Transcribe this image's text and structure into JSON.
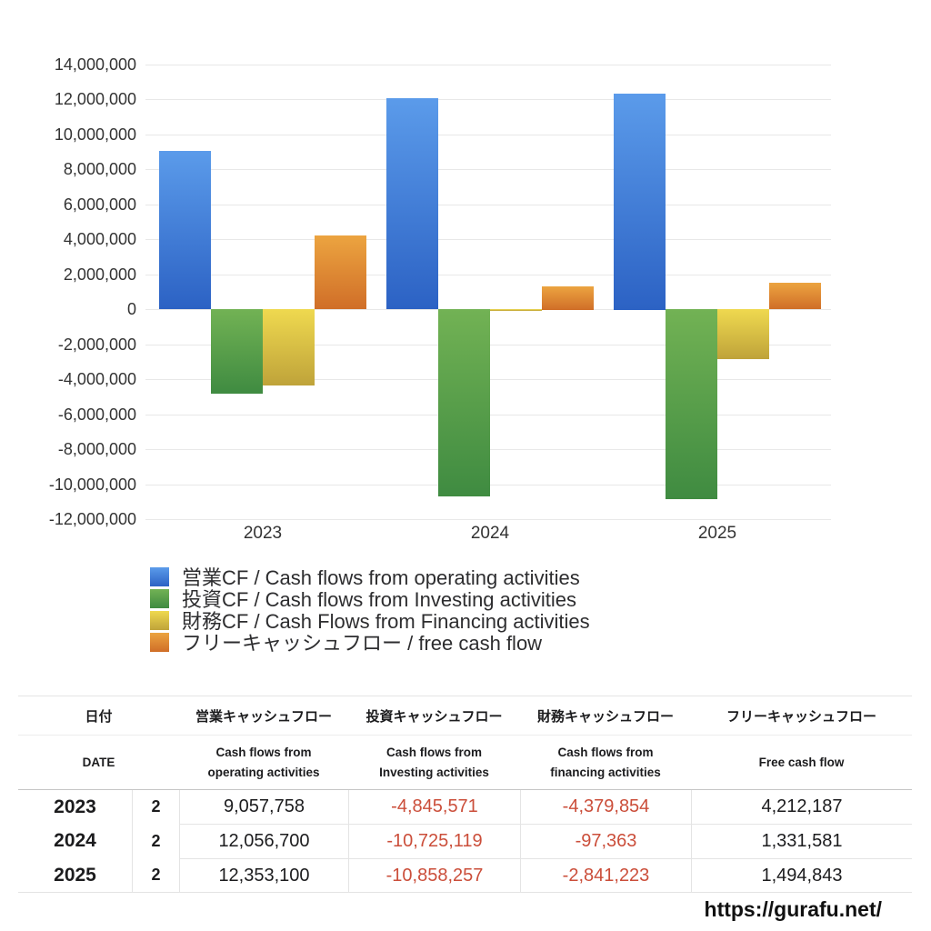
{
  "page": {
    "background": "#ffffff"
  },
  "chart_data": {
    "type": "bar",
    "categories": [
      "2023",
      "2024",
      "2025"
    ],
    "series": [
      {
        "key": "operating",
        "name": "営業CF / Cash flows from operating activities",
        "values": [
          9057758,
          12056700,
          12353100
        ],
        "color_top": "#5b9bea",
        "color_bottom": "#2c62c4"
      },
      {
        "key": "investing",
        "name": "投資CF / Cash flows from Investing activities",
        "values": [
          -4845571,
          -10725119,
          -10858257
        ],
        "color_top": "#72b254",
        "color_bottom": "#3f8b41"
      },
      {
        "key": "financing",
        "name": "財務CF / Cash Flows from Financing activities",
        "values": [
          -4379854,
          -97363,
          -2841223
        ],
        "color_top": "#efd94f",
        "color_bottom": "#bfa33a"
      },
      {
        "key": "free-cash-flow",
        "name": "フリーキャッシュフロー / free cash flow",
        "values": [
          4212187,
          1331581,
          1494843
        ],
        "color_top": "#eca440",
        "color_bottom": "#d06e28"
      }
    ],
    "ylim": [
      -12000000,
      14000000
    ],
    "ytick_step": 2000000,
    "grid": true,
    "legend_position": "bottom-left",
    "axis_text_color": "#333333",
    "gridline_color": "#e8e8e8"
  },
  "table": {
    "header_jp": {
      "date": "日付",
      "operating": "営業キャッシュフロー",
      "investing": "投資キャッシュフロー",
      "financing": "財務キャッシュフロー",
      "free": "フリーキャッシュフロー"
    },
    "header_en": {
      "date": "DATE",
      "operating": "Cash flows from operating activities",
      "investing": "Cash flows from Investing activities",
      "financing": "Cash flows from financing activities",
      "free": "Free cash flow"
    },
    "rows": [
      {
        "year": "2023",
        "month": "2",
        "operating": "9,057,758",
        "investing": "-4,845,571",
        "financing": "-4,379,854",
        "free": "4,212,187"
      },
      {
        "year": "2024",
        "month": "2",
        "operating": "12,056,700",
        "investing": "-10,725,119",
        "financing": "-97,363",
        "free": "1,331,581"
      },
      {
        "year": "2025",
        "month": "2",
        "operating": "12,353,100",
        "investing": "-10,858,257",
        "financing": "-2,841,223",
        "free": "1,494,843"
      }
    ],
    "negative_color": "#cb4e3a"
  },
  "footer": {
    "url": "https://gurafu.net/"
  }
}
